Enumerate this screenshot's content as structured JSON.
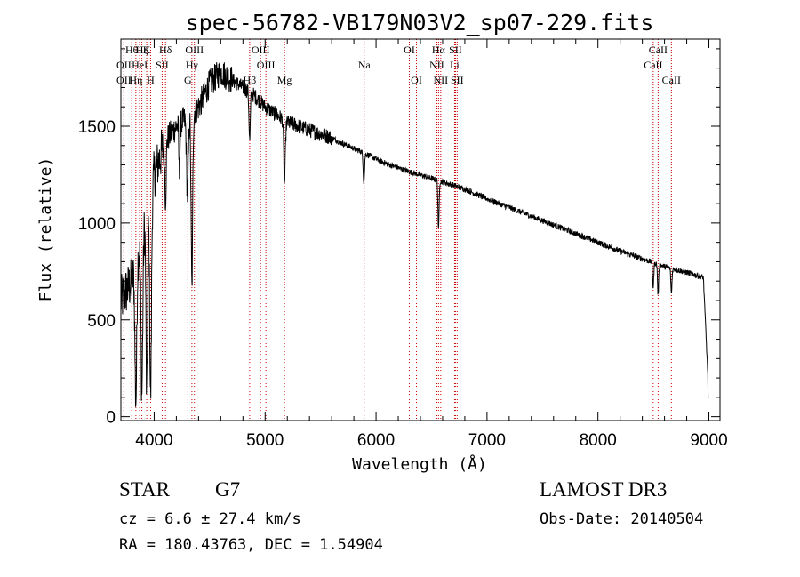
{
  "chart_data": {
    "type": "line",
    "title": "spec-56782-VB179N03V2_sp07-229.fits",
    "xlabel": "Wavelength (Å)",
    "ylabel": "Flux (relative)",
    "xlim": [
      3700,
      9100
    ],
    "ylim": [
      -20,
      1950
    ],
    "xticks": [
      4000,
      5000,
      6000,
      7000,
      8000,
      9000
    ],
    "yticks": [
      0,
      500,
      1000,
      1500
    ],
    "line_color": "#000000",
    "marker_color": "#cc0000",
    "continuum": [
      [
        3700,
        600
      ],
      [
        3800,
        700
      ],
      [
        3900,
        950
      ],
      [
        4000,
        1250
      ],
      [
        4100,
        1420
      ],
      [
        4200,
        1500
      ],
      [
        4300,
        1540
      ],
      [
        4400,
        1600
      ],
      [
        4500,
        1720
      ],
      [
        4600,
        1780
      ],
      [
        4700,
        1740
      ],
      [
        4800,
        1700
      ],
      [
        4900,
        1660
      ],
      [
        5000,
        1600
      ],
      [
        5100,
        1560
      ],
      [
        5200,
        1520
      ],
      [
        5300,
        1500
      ],
      [
        5400,
        1480
      ],
      [
        5500,
        1460
      ],
      [
        5600,
        1440
      ],
      [
        5700,
        1410
      ],
      [
        5800,
        1385
      ],
      [
        5900,
        1360
      ],
      [
        6000,
        1330
      ],
      [
        6100,
        1305
      ],
      [
        6200,
        1285
      ],
      [
        6300,
        1265
      ],
      [
        6400,
        1248
      ],
      [
        6500,
        1230
      ],
      [
        6600,
        1212
      ],
      [
        6700,
        1195
      ],
      [
        6800,
        1175
      ],
      [
        6900,
        1150
      ],
      [
        7000,
        1125
      ],
      [
        7200,
        1080
      ],
      [
        7400,
        1035
      ],
      [
        7600,
        990
      ],
      [
        7800,
        945
      ],
      [
        8000,
        900
      ],
      [
        8200,
        855
      ],
      [
        8400,
        815
      ],
      [
        8600,
        775
      ],
      [
        8800,
        745
      ],
      [
        8950,
        720
      ],
      [
        9000,
        100
      ]
    ],
    "absorption": [
      {
        "w": 3835,
        "depth": 700,
        "width": 8
      },
      {
        "w": 3889,
        "depth": 800,
        "width": 8
      },
      {
        "w": 3933,
        "depth": 950,
        "width": 7
      },
      {
        "w": 3968,
        "depth": 1050,
        "width": 8
      },
      {
        "w": 4102,
        "depth": 300,
        "width": 6
      },
      {
        "w": 4227,
        "depth": 250,
        "width": 5
      },
      {
        "w": 4300,
        "depth": 400,
        "width": 8
      },
      {
        "w": 4340,
        "depth": 900,
        "width": 7
      },
      {
        "w": 4861,
        "depth": 250,
        "width": 6
      },
      {
        "w": 5175,
        "depth": 320,
        "width": 7
      },
      {
        "w": 5890,
        "depth": 150,
        "width": 6
      },
      {
        "w": 6563,
        "depth": 260,
        "width": 5
      },
      {
        "w": 8498,
        "depth": 130,
        "width": 5
      },
      {
        "w": 8542,
        "depth": 160,
        "width": 5
      },
      {
        "w": 8662,
        "depth": 130,
        "width": 5
      }
    ],
    "line_markers": [
      {
        "w": 3727,
        "label": "OII",
        "row": 2
      },
      {
        "w": 3727,
        "label": "OII",
        "row": 3
      },
      {
        "w": 3798,
        "label": "Hθ",
        "row": 1
      },
      {
        "w": 3835,
        "label": "Hη",
        "row": 3
      },
      {
        "w": 3869,
        "label": "HeI",
        "row": 2
      },
      {
        "w": 3889,
        "label": "Hζ",
        "row": 1
      },
      {
        "w": 3933,
        "label": "K",
        "row": 1
      },
      {
        "w": 3968,
        "label": "H",
        "row": 3
      },
      {
        "w": 4072,
        "label": "SII",
        "row": 2
      },
      {
        "w": 4102,
        "label": "Hδ",
        "row": 1
      },
      {
        "w": 4304,
        "label": "G",
        "row": 3
      },
      {
        "w": 4340,
        "label": "Hγ",
        "row": 2
      },
      {
        "w": 4363,
        "label": "OIII",
        "row": 1
      },
      {
        "w": 4861,
        "label": "Hβ",
        "row": 3
      },
      {
        "w": 4959,
        "label": "OIII",
        "row": 1
      },
      {
        "w": 5007,
        "label": "OIII",
        "row": 2
      },
      {
        "w": 5175,
        "label": "Mg",
        "row": 3
      },
      {
        "w": 5893,
        "label": "Na",
        "row": 2
      },
      {
        "w": 6300,
        "label": "OI",
        "row": 1
      },
      {
        "w": 6364,
        "label": "OI",
        "row": 3
      },
      {
        "w": 6548,
        "label": "NII",
        "row": 2
      },
      {
        "w": 6563,
        "label": "Hα",
        "row": 1
      },
      {
        "w": 6583,
        "label": "NII",
        "row": 3
      },
      {
        "w": 6708,
        "label": "Li",
        "row": 2
      },
      {
        "w": 6716,
        "label": "SII",
        "row": 1
      },
      {
        "w": 6731,
        "label": "SII",
        "row": 3
      },
      {
        "w": 8498,
        "label": "CaII",
        "row": 2
      },
      {
        "w": 8542,
        "label": "CaII",
        "row": 1
      },
      {
        "w": 8662,
        "label": "CaII",
        "row": 3
      }
    ]
  },
  "info": {
    "object_class": "STAR",
    "subclass": "G7",
    "survey": "LAMOST DR3",
    "redshift": "cz = 6.6 ± 27.4 km/s",
    "obs_date": "Obs-Date: 20140504",
    "coords": "RA = 180.43763, DEC =    1.54904"
  }
}
